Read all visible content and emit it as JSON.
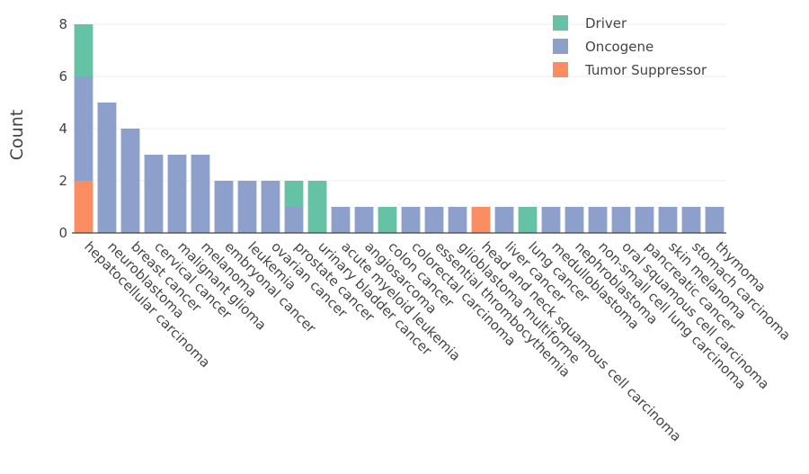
{
  "chart_data": {
    "type": "bar",
    "stacked": true,
    "title": "",
    "xlabel": "",
    "ylabel": "Count",
    "ylim": [
      0,
      8
    ],
    "yticks": [
      0,
      2,
      4,
      6,
      8
    ],
    "grid": true,
    "legend_position": "top-right",
    "categories": [
      "hepatocellular carcinoma",
      "neuroblastoma",
      "breast cancer",
      "cervical cancer",
      "malignant glioma",
      "melanoma",
      "embryonal cancer",
      "leukemia",
      "ovarian cancer",
      "prostate cancer",
      "urinary bladder cancer",
      "acute myeloid leukemia",
      "angiosarcoma",
      "colon cancer",
      "colorectal carcinoma",
      "essential thrombocythemia",
      "glioblastoma multiforme",
      "head and neck squamous cell carcinoma",
      "liver cancer",
      "lung cancer",
      "medulloblastoma",
      "nephroblastoma",
      "non-small cell lung carcinoma",
      "oral squamous cell carcinoma",
      "pancreatic cancer",
      "skin melanoma",
      "stomach carcinoma",
      "thymoma"
    ],
    "series": [
      {
        "name": "Tumor Suppressor",
        "color": "#fc8d62",
        "values": [
          2,
          0,
          0,
          0,
          0,
          0,
          0,
          0,
          0,
          0,
          0,
          0,
          0,
          0,
          0,
          0,
          0,
          1,
          0,
          0,
          0,
          0,
          0,
          0,
          0,
          0,
          0,
          0
        ]
      },
      {
        "name": "Oncogene",
        "color": "#8da0cb",
        "values": [
          4,
          5,
          4,
          3,
          3,
          3,
          2,
          2,
          2,
          1,
          0,
          1,
          1,
          0,
          1,
          1,
          1,
          0,
          1,
          0,
          1,
          1,
          1,
          1,
          1,
          1,
          1,
          1
        ]
      },
      {
        "name": "Driver",
        "color": "#66c2a5",
        "values": [
          2,
          0,
          0,
          0,
          0,
          0,
          0,
          0,
          0,
          1,
          2,
          0,
          0,
          1,
          0,
          0,
          0,
          0,
          0,
          1,
          0,
          0,
          0,
          0,
          0,
          0,
          0,
          0
        ]
      }
    ],
    "legend_order": [
      "Driver",
      "Oncogene",
      "Tumor Suppressor"
    ]
  }
}
